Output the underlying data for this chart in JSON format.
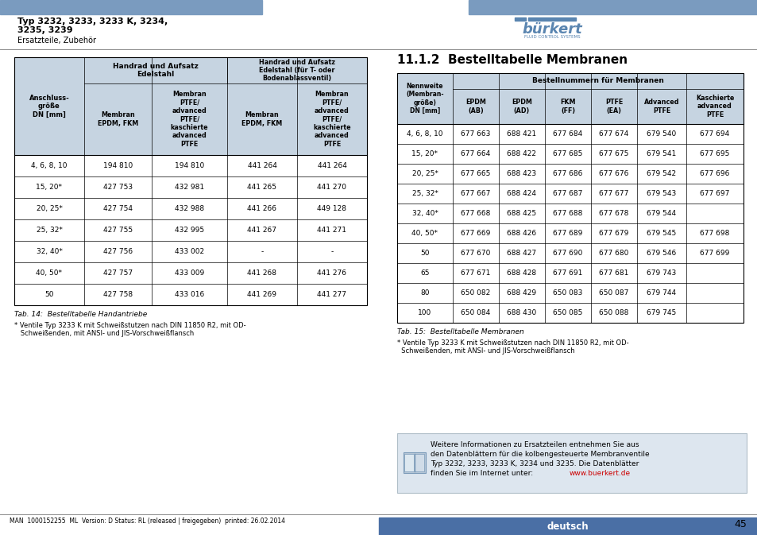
{
  "page_title_line1": "Typ 3232, 3233, 3233 K, 3234,",
  "page_title_line2": "3235, 3239",
  "page_subtitle": "Ersatzteile, Zubehör",
  "header_bar_color": "#7a9bbf",
  "background_color": "#ffffff",
  "page_number": "45",
  "footer_text": "MAN  1000152255  ML  Version: D Status: RL (released | freigegeben)  printed: 26.02.2014",
  "footer_lang": "deutsch",
  "footer_lang_bg": "#4a6fa5",
  "table1_title": "Tab. 14:  Bestelltabelle Handantriebe",
  "table1_note": "* Ventile Typ 3233 K mit Schweißstutzen nach DIN 11850 R2, mit OD-\n   Schweißenden, mit ANSI- und JIS-Vorschweißflansch",
  "table1_headers_row0_col12": "Handrad und Aufsatz\nEdelstahl",
  "table1_headers_row0_col34": "Handrad und Aufsatz\nEdelstahl (für T- oder\nBodenablassventil)",
  "table1_headers": [
    "Anschluss-\ngröße\nDN [mm]",
    "Membran\nEPDM, FKM",
    "Membran\nPTFE/\nadvanced\nPTFE/\nkaschierte\nadvanced\nPTFE",
    "Membran\nEPDM, FKM",
    "Membran\nPTFE/\nadvanced\nPTFE/\nkaschierte\nadvanced\nPTFE"
  ],
  "table1_rows": [
    [
      "4, 6, 8, 10",
      "194 810",
      "194 810",
      "441 264",
      "441 264"
    ],
    [
      "15, 20*",
      "427 753",
      "432 981",
      "441 265",
      "441 270"
    ],
    [
      "20, 25*",
      "427 754",
      "432 988",
      "441 266",
      "449 128"
    ],
    [
      "25, 32*",
      "427 755",
      "432 995",
      "441 267",
      "441 271"
    ],
    [
      "32, 40*",
      "427 756",
      "433 002",
      "-",
      "-"
    ],
    [
      "40, 50*",
      "427 757",
      "433 009",
      "441 268",
      "441 276"
    ],
    [
      "50",
      "427 758",
      "433 016",
      "441 269",
      "441 277"
    ]
  ],
  "table1_header_bg": "#c6d4e1",
  "section_title": "11.1.2  Bestelltabelle Membranen",
  "table2_title": "Tab. 15:  Bestelltabelle Membranen",
  "table2_note": "* Ventile Typ 3233 K mit Schweißstutzen nach DIN 11850 R2, mit OD-\n  Schweißenden, mit ANSI- und JIS-Vorschweißflansch",
  "table2_col_group_header": "Bestellnummern für Membranen",
  "table2_headers": [
    "Nennweite\n(Membran-\ngröße)\nDN [mm]",
    "EPDM\n(AB)",
    "EPDM\n(AD)",
    "FKM\n(FF)",
    "PTFE\n(EA)",
    "Advanced\nPTFE",
    "Kaschierte\nadvanced\nPTFE"
  ],
  "table2_rows": [
    [
      "4, 6, 8, 10",
      "677 663",
      "688 421",
      "677 684",
      "677 674",
      "679 540",
      "677 694"
    ],
    [
      "15, 20*",
      "677 664",
      "688 422",
      "677 685",
      "677 675",
      "679 541",
      "677 695"
    ],
    [
      "20, 25*",
      "677 665",
      "688 423",
      "677 686",
      "677 676",
      "679 542",
      "677 696"
    ],
    [
      "25, 32*",
      "677 667",
      "688 424",
      "677 687",
      "677 677",
      "679 543",
      "677 697"
    ],
    [
      "32, 40*",
      "677 668",
      "688 425",
      "677 688",
      "677 678",
      "679 544",
      ""
    ],
    [
      "40, 50*",
      "677 669",
      "688 426",
      "677 689",
      "677 679",
      "679 545",
      "677 698"
    ],
    [
      "50",
      "677 670",
      "688 427",
      "677 690",
      "677 680",
      "679 546",
      "677 699"
    ],
    [
      "65",
      "677 671",
      "688 428",
      "677 691",
      "677 681",
      "679 743",
      ""
    ],
    [
      "80",
      "650 082",
      "688 429",
      "650 083",
      "650 087",
      "679 744",
      ""
    ],
    [
      "100",
      "650 084",
      "688 430",
      "650 085",
      "650 088",
      "679 745",
      ""
    ]
  ],
  "table2_header_bg": "#c6d4e1",
  "info_box_bg": "#dde6ef",
  "info_box_text": "Weitere Informationen zu Ersatzteilen entnehmen Sie aus\nden Datenblättern für die kolbengesteuerte Membranventile\nTyp 3232, 3233, 3233 K, 3234 und 3235. Die Datenblätter\nfinden Sie im Internet unter: ",
  "info_box_link": "www.buerkert.de",
  "info_box_link_color": "#cc0000"
}
